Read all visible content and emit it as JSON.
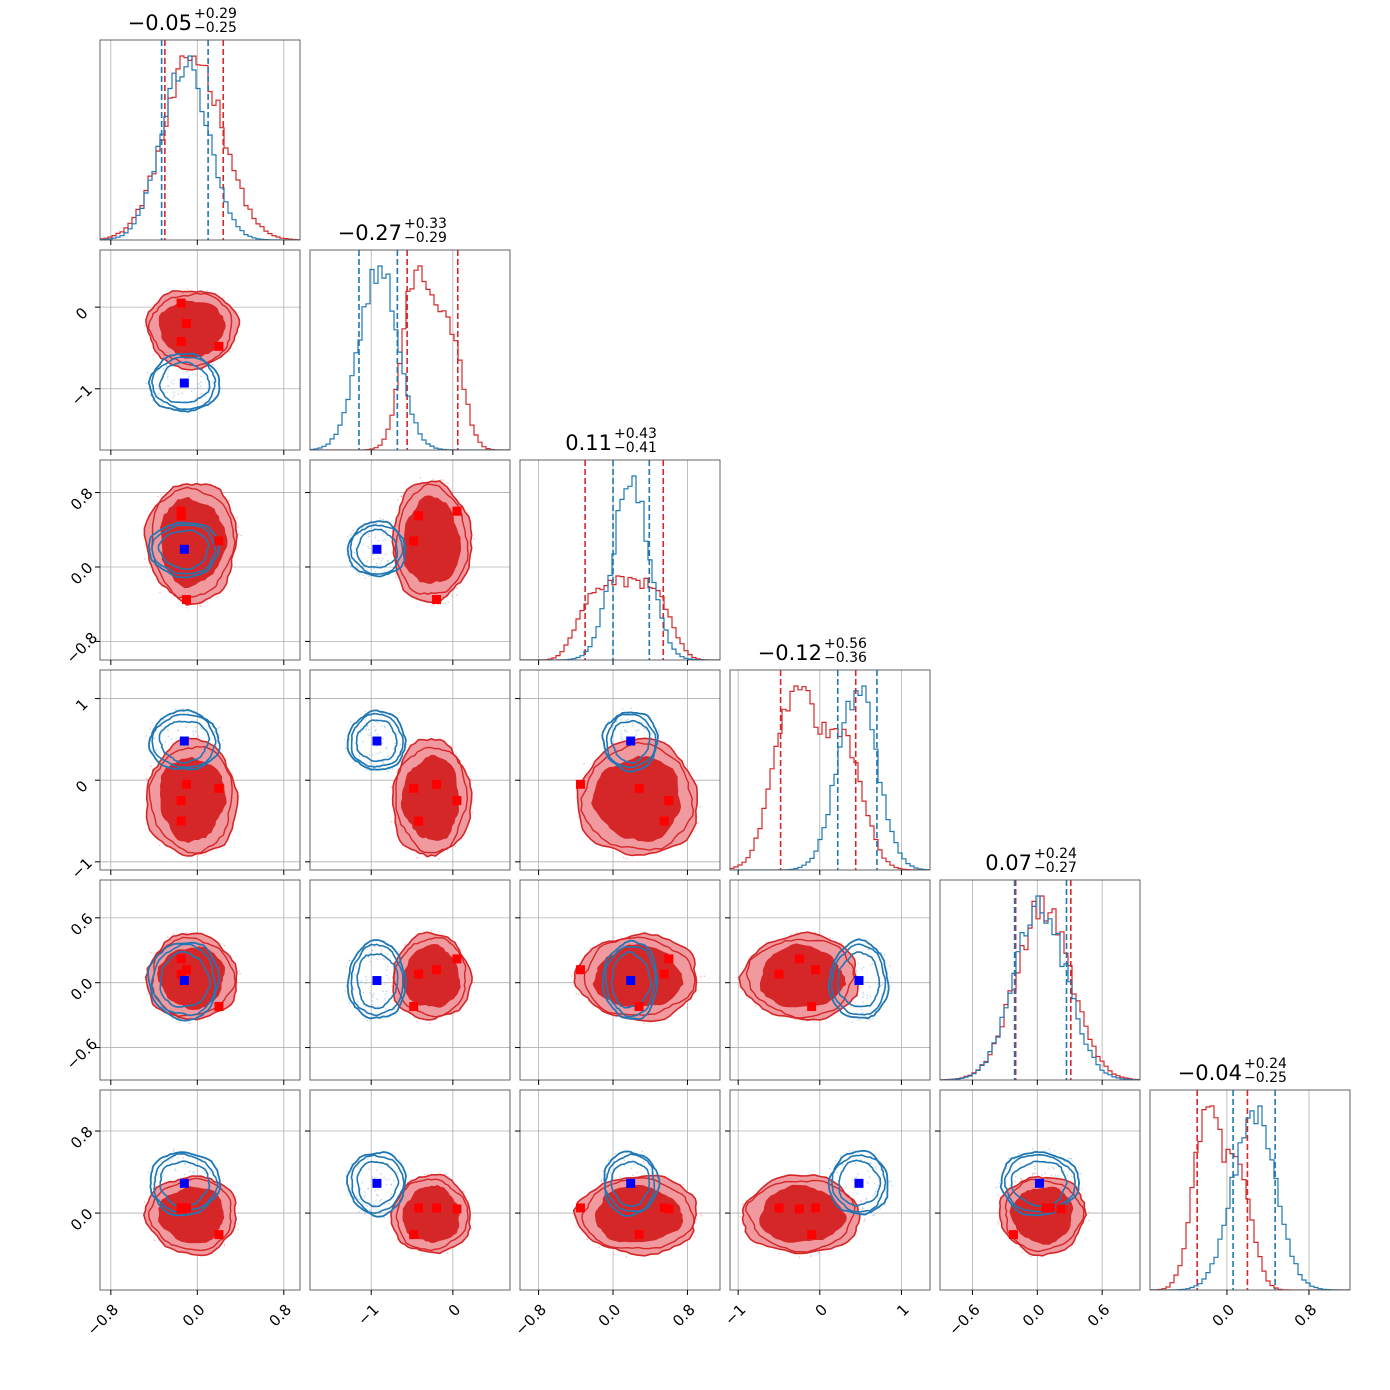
{
  "chart_data": {
    "type": "corner",
    "parameters": [
      {
        "name": "",
        "range": [
          -0.9,
          0.95
        ],
        "median": "−0.05",
        "plus": "+0.29",
        "minus": "−0.25",
        "ticks": [
          -0.8,
          0.0,
          0.8
        ],
        "tick_labels": [
          "−0.8",
          "0.0",
          "0.8"
        ]
      },
      {
        "name": "",
        "range": [
          -1.75,
          0.7
        ],
        "median": "−0.27",
        "plus": "+0.33",
        "minus": "−0.29",
        "ticks": [
          -1,
          0
        ],
        "tick_labels": [
          "−1",
          "0"
        ]
      },
      {
        "name": "",
        "range": [
          -1.0,
          1.15
        ],
        "median": "0.11",
        "plus": "+0.43",
        "minus": "−0.41",
        "ticks": [
          -0.8,
          0.0,
          0.8
        ],
        "tick_labels": [
          "−0.8",
          "0.0",
          "0.8"
        ]
      },
      {
        "name": "",
        "range": [
          -1.1,
          1.35
        ],
        "median": "−0.12",
        "plus": "+0.56",
        "minus": "−0.36",
        "ticks": [
          -1,
          0,
          1
        ],
        "tick_labels": [
          "−1",
          "0",
          "1"
        ]
      },
      {
        "name": "",
        "range": [
          -0.9,
          0.95
        ],
        "median": "0.07",
        "plus": "+0.24",
        "minus": "−0.27",
        "ticks": [
          -0.6,
          0.0,
          0.6
        ],
        "tick_labels": [
          "−0.6",
          "0.0",
          "0.6"
        ]
      },
      {
        "name": "",
        "range": [
          -0.75,
          1.2
        ],
        "median": "−0.04",
        "plus": "+0.24",
        "minus": "−0.25",
        "ticks": [
          0.0,
          0.8
        ],
        "tick_labels": [
          "0.0",
          "0.8"
        ]
      }
    ],
    "series": [
      {
        "color": "#d62728",
        "points": [
          [
            -0.15,
            0.05,
            0.6,
            -0.25,
            0.22,
            0.04
          ],
          [
            0.2,
            -0.48,
            0.28,
            -0.1,
            -0.22,
            -0.21
          ],
          [
            -0.1,
            -0.2,
            -0.35,
            -0.05,
            0.12,
            0.05
          ],
          [
            -0.15,
            -0.42,
            0.55,
            -0.5,
            0.08,
            0.05
          ]
        ],
        "quantiles": [
          [
            -0.3,
            0.24
          ],
          [
            -0.56,
            0.06
          ],
          [
            -0.3,
            0.54
          ],
          [
            -0.48,
            0.44
          ],
          [
            -0.2,
            0.31
          ],
          [
            -0.29,
            0.2
          ]
        ]
      },
      {
        "color": "#1f77b4",
        "points": [
          [
            -0.12,
            -0.93,
            0.19,
            0.48,
            0.02,
            0.29
          ]
        ],
        "quantiles": [
          [
            -0.33,
            0.1
          ],
          [
            -1.15,
            -0.68
          ],
          [
            0.0,
            0.39
          ],
          [
            0.22,
            0.7
          ],
          [
            -0.21,
            0.27
          ],
          [
            0.06,
            0.47
          ]
        ]
      }
    ],
    "grid": true
  }
}
